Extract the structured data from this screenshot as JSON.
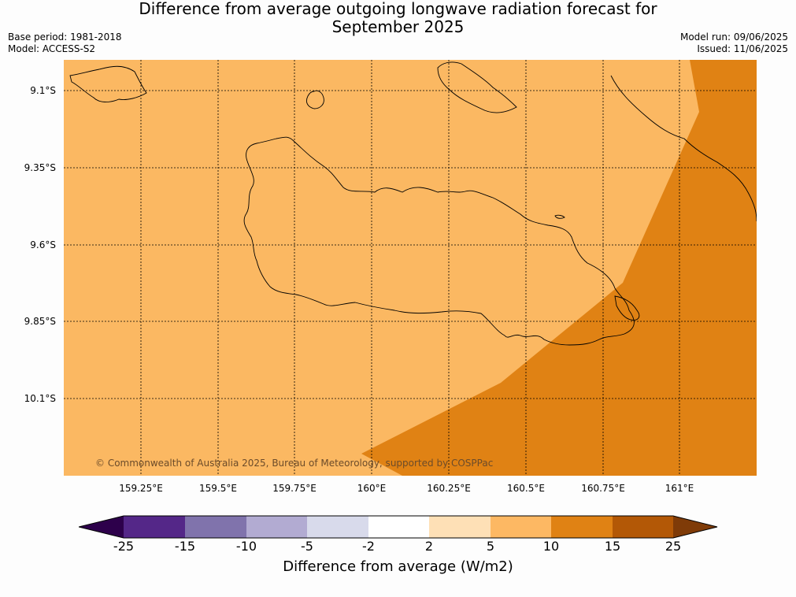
{
  "title": {
    "line1": "Difference from average outgoing longwave radiation forecast for",
    "line2": "September 2025"
  },
  "meta": {
    "base_period": "Base period: 1981-2018",
    "model": "Model: ACCESS-S2",
    "model_run": "Model run: 09/06/2025",
    "issued": "Issued: 11/06/2025"
  },
  "map": {
    "copyright": "© Commonwealth of Australia 2025, Bureau of Meteorology, supported by COSPPac",
    "background_color": "#fbb862",
    "high_anomaly_color": "#e08214",
    "coastline_color": "#000000",
    "lat_labels": [
      "9.1°S",
      "9.35°S",
      "9.6°S",
      "9.85°S",
      "10.1°S"
    ],
    "lon_labels": [
      "159.25°E",
      "159.5°E",
      "159.75°E",
      "160°E",
      "160.25°E",
      "160.5°E",
      "160.75°E",
      "161°E"
    ]
  },
  "colorbar": {
    "label": "Difference from average (W/m2)",
    "ticks": [
      "-25",
      "-15",
      "-10",
      "-5",
      "-2",
      "2",
      "5",
      "10",
      "15",
      "25"
    ],
    "colors": [
      "#2d004b",
      "#542788",
      "#8073ac",
      "#b2abd2",
      "#d8daeb",
      "#ffffff",
      "#fee0b6",
      "#fdb863",
      "#e08214",
      "#b35806",
      "#7f3b08"
    ]
  }
}
